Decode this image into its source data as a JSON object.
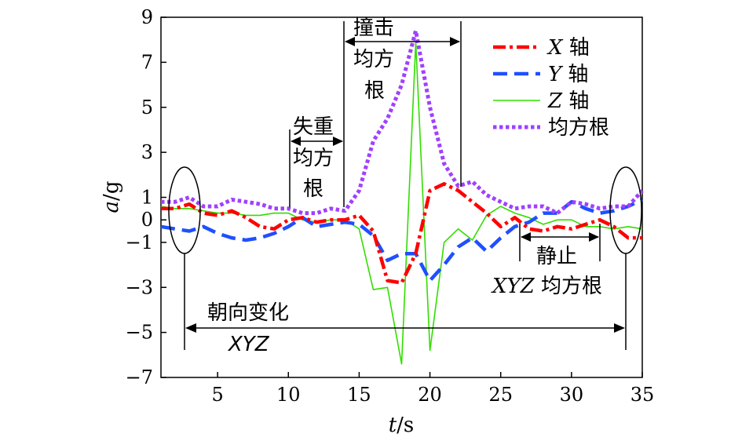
{
  "chart_data": {
    "type": "line",
    "xlabel_var": "t",
    "xlabel_unit": "/s",
    "ylabel_var": "a",
    "ylabel_unit": "/g",
    "xlim": [
      1,
      35
    ],
    "ylim": [
      -7,
      9
    ],
    "x_ticks": [
      5,
      10,
      15,
      20,
      25,
      30,
      35
    ],
    "y_ticks": [
      -7,
      -5,
      -3,
      -1,
      0,
      1,
      3,
      5,
      7,
      9
    ],
    "grid": false,
    "legend_position": "top-right",
    "series": [
      {
        "name_var": "X",
        "name_suffix": " 轴",
        "color": "#ff0000",
        "style": "dashdot",
        "x": [
          1,
          2,
          3,
          4,
          5,
          6,
          7,
          8,
          9,
          10,
          11,
          12,
          13,
          14,
          15,
          16,
          17,
          18,
          19,
          20,
          21,
          22,
          23,
          24,
          25,
          26,
          27,
          28,
          29,
          30,
          31,
          32,
          33,
          34,
          35
        ],
        "y": [
          0.5,
          0.5,
          0.7,
          0.3,
          0.2,
          0.4,
          0.1,
          -0.3,
          -0.4,
          0.0,
          0.1,
          -0.1,
          0.0,
          0.0,
          0.2,
          -0.5,
          -2.7,
          -2.8,
          -1.5,
          1.3,
          1.6,
          1.3,
          0.8,
          0.3,
          -0.3,
          0.1,
          -0.4,
          -0.5,
          -0.3,
          -0.4,
          -0.2,
          0.0,
          -0.3,
          -0.8,
          -0.8
        ]
      },
      {
        "name_var": "Y",
        "name_suffix": " 轴",
        "color": "#1f4fff",
        "style": "dashed",
        "x": [
          1,
          2,
          3,
          4,
          5,
          6,
          7,
          8,
          9,
          10,
          11,
          12,
          13,
          14,
          15,
          16,
          17,
          18,
          19,
          20,
          21,
          22,
          23,
          24,
          25,
          26,
          27,
          28,
          29,
          30,
          31,
          32,
          33,
          34,
          35
        ],
        "y": [
          -0.3,
          -0.4,
          -0.5,
          -0.3,
          -0.6,
          -0.8,
          -0.9,
          -0.8,
          -0.6,
          -0.3,
          0.1,
          -0.3,
          -0.2,
          -0.1,
          -0.2,
          -0.7,
          -1.8,
          -1.5,
          -1.5,
          -2.7,
          -2.0,
          -1.2,
          -0.8,
          -1.4,
          -0.8,
          -0.3,
          -0.1,
          0.3,
          0.3,
          0.8,
          0.5,
          0.3,
          0.4,
          0.6,
          0.9
        ]
      },
      {
        "name_var": "Z",
        "name_suffix": " 轴",
        "color": "#33dd00",
        "style": "solid",
        "x": [
          1,
          2,
          3,
          4,
          5,
          6,
          7,
          8,
          9,
          10,
          11,
          12,
          13,
          14,
          15,
          16,
          17,
          18,
          19,
          20,
          21,
          22,
          23,
          24,
          25,
          26,
          27,
          28,
          29,
          30,
          31,
          32,
          33,
          34,
          35
        ],
        "y": [
          0.6,
          0.5,
          0.5,
          0.4,
          0.3,
          0.3,
          0.2,
          0.2,
          0.3,
          0.3,
          0.0,
          -0.1,
          0.0,
          0.0,
          -0.4,
          -3.1,
          -3.0,
          -6.4,
          7.9,
          -5.8,
          -1.0,
          -0.4,
          -0.9,
          0.2,
          0.6,
          0.3,
          0.1,
          -0.2,
          0.0,
          0.0,
          -0.3,
          -0.3,
          -0.4,
          -0.3,
          -0.4
        ]
      },
      {
        "name": "均方根",
        "color": "#a040ff",
        "style": "dotted",
        "x": [
          1,
          2,
          3,
          4,
          5,
          6,
          7,
          8,
          9,
          10,
          11,
          12,
          13,
          14,
          15,
          16,
          17,
          18,
          19,
          20,
          21,
          22,
          23,
          24,
          25,
          26,
          27,
          28,
          29,
          30,
          31,
          32,
          33,
          34,
          35
        ],
        "y": [
          0.8,
          0.8,
          1.0,
          0.6,
          0.6,
          0.9,
          0.8,
          0.7,
          0.5,
          0.5,
          0.3,
          0.3,
          0.5,
          0.4,
          1.3,
          3.5,
          4.5,
          6.0,
          8.4,
          5.0,
          2.5,
          1.5,
          1.7,
          1.1,
          0.8,
          0.5,
          0.6,
          0.6,
          0.3,
          0.8,
          0.7,
          0.5,
          0.6,
          0.6,
          1.3
        ]
      }
    ],
    "annotations": {
      "orientation_line1": "朝向变化",
      "orientation_line2": "XYZ",
      "weightless_line1": "失重",
      "weightless_line2": "均方",
      "weightless_line3": "根",
      "impact_line1": "撞击",
      "impact_line2": "均方",
      "impact_line3": "根",
      "static_line1": "静止",
      "static_line2_var": "XYZ",
      "static_line2_suffix": " 均方根"
    }
  }
}
